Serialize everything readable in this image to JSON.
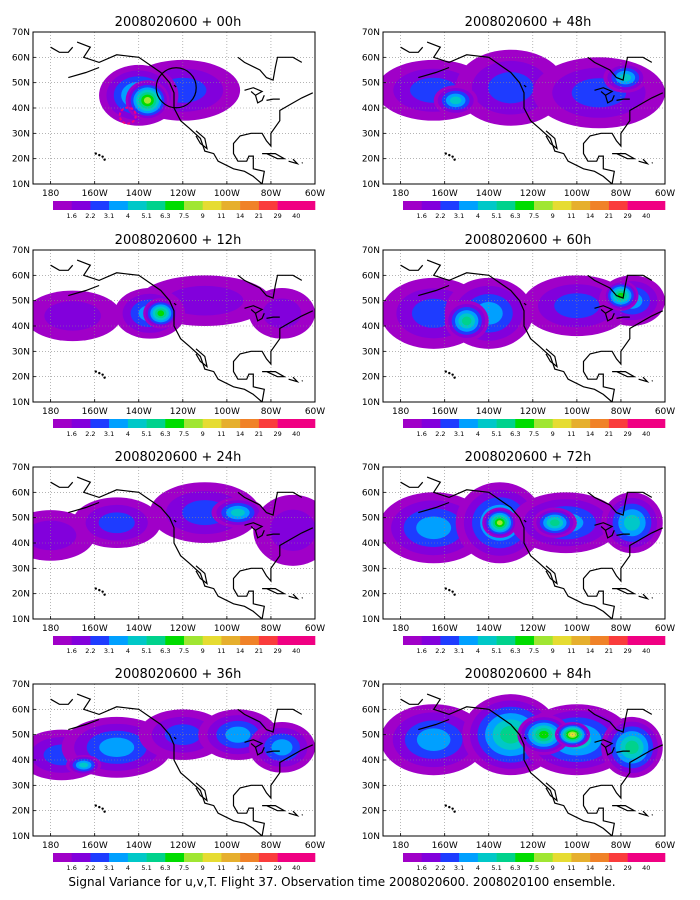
{
  "caption": "Signal Variance for u,v,T. Flight 37. Observation time 2008020600. 2008020100 ensemble.",
  "lat_labels": [
    "10N",
    "20N",
    "30N",
    "40N",
    "50N",
    "60N",
    "70N"
  ],
  "lon_labels": [
    "180",
    "160W",
    "140W",
    "120W",
    "100W",
    "80W",
    "60W"
  ],
  "colorbar": {
    "labels": [
      "1.6",
      "2.2",
      "3.1",
      "4",
      "5.1",
      "6.3",
      "7.5",
      "9",
      "11",
      "14",
      "21",
      "29",
      "40"
    ],
    "colors": [
      "#a000c8",
      "#8200dc",
      "#1e3cff",
      "#00a0ff",
      "#00c8c8",
      "#00d28c",
      "#00dc00",
      "#a0e632",
      "#e6dc32",
      "#e6af2d",
      "#f08228",
      "#fa3c3c",
      "#f00082"
    ]
  },
  "chart_data": {
    "type": "heatmap",
    "xlim": [
      -188,
      -60
    ],
    "ylim": [
      10,
      70
    ],
    "grid": true,
    "colorbar_levels": [
      1.6,
      2.2,
      3.1,
      4,
      5.1,
      6.3,
      7.5,
      9,
      11,
      14,
      21,
      29,
      40
    ],
    "panels": [
      {
        "title": "2008020600 + 00h",
        "blobs": [
          [
            -120,
            47,
            26,
            12,
            2
          ],
          [
            -140,
            45,
            18,
            12,
            4
          ],
          [
            -136,
            43,
            10,
            8,
            7
          ]
        ]
      },
      {
        "title": "2008020600 + 12h",
        "blobs": [
          [
            -170,
            44,
            22,
            10,
            1
          ],
          [
            -110,
            50,
            30,
            10,
            1
          ],
          [
            -135,
            45,
            16,
            10,
            3
          ],
          [
            -130,
            45,
            8,
            6,
            6
          ],
          [
            -75,
            45,
            15,
            10,
            1
          ]
        ]
      },
      {
        "title": "2008020600 + 24h",
        "blobs": [
          [
            -180,
            43,
            20,
            10,
            1
          ],
          [
            -150,
            48,
            20,
            10,
            2
          ],
          [
            -110,
            52,
            25,
            12,
            2
          ],
          [
            -95,
            52,
            12,
            6,
            4
          ],
          [
            -70,
            45,
            18,
            14,
            1
          ]
        ]
      },
      {
        "title": "2008020600 + 36h",
        "blobs": [
          [
            -175,
            42,
            20,
            10,
            2
          ],
          [
            -150,
            45,
            25,
            12,
            3
          ],
          [
            -120,
            50,
            20,
            10,
            2
          ],
          [
            -95,
            50,
            18,
            10,
            3
          ],
          [
            -75,
            45,
            15,
            10,
            3
          ],
          [
            -165,
            38,
            8,
            4,
            4
          ]
        ]
      },
      {
        "title": "2008020600 + 48h",
        "blobs": [
          [
            -165,
            47,
            26,
            12,
            2
          ],
          [
            -130,
            48,
            25,
            15,
            2
          ],
          [
            -90,
            46,
            30,
            14,
            2
          ],
          [
            -155,
            43,
            10,
            6,
            4
          ],
          [
            -78,
            52,
            10,
            6,
            4
          ]
        ]
      },
      {
        "title": "2008020600 + 60h",
        "blobs": [
          [
            -165,
            45,
            24,
            14,
            2
          ],
          [
            -140,
            45,
            20,
            14,
            3
          ],
          [
            -100,
            48,
            25,
            12,
            2
          ],
          [
            -75,
            50,
            15,
            10,
            3
          ],
          [
            -150,
            42,
            10,
            8,
            5
          ],
          [
            -80,
            52,
            8,
            6,
            6
          ]
        ]
      },
      {
        "title": "2008020600 + 72h",
        "blobs": [
          [
            -165,
            46,
            25,
            14,
            3
          ],
          [
            -135,
            48,
            20,
            16,
            4
          ],
          [
            -105,
            48,
            25,
            12,
            3
          ],
          [
            -75,
            48,
            14,
            12,
            4
          ],
          [
            -135,
            48,
            8,
            6,
            7
          ],
          [
            -110,
            48,
            10,
            6,
            5
          ]
        ]
      },
      {
        "title": "2008020600 + 84h",
        "blobs": [
          [
            -165,
            48,
            24,
            14,
            3
          ],
          [
            -130,
            50,
            22,
            16,
            5
          ],
          [
            -100,
            48,
            25,
            14,
            4
          ],
          [
            -75,
            45,
            14,
            12,
            5
          ],
          [
            -115,
            50,
            12,
            8,
            6
          ],
          [
            -102,
            50,
            8,
            5,
            8
          ]
        ]
      }
    ]
  }
}
